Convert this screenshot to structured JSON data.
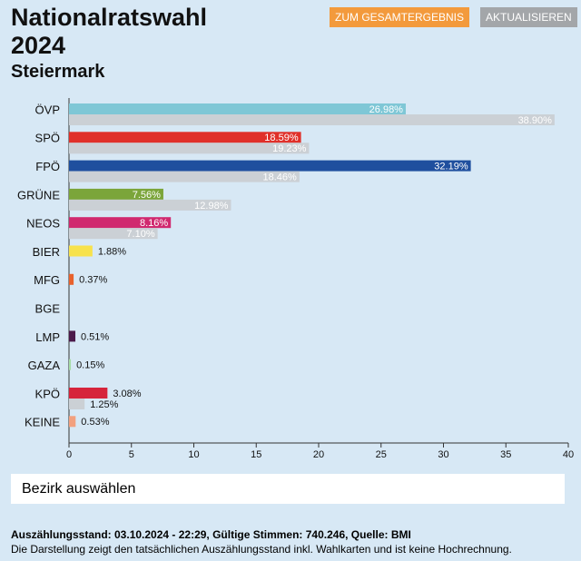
{
  "header": {
    "title": "Nationalratswahl 2024",
    "subtitle": "Steiermark",
    "buttons": [
      "ZUM GESAMTERGEBNIS",
      "AKTUALISIEREN"
    ]
  },
  "chart_data": {
    "type": "bar",
    "orientation": "horizontal",
    "categories": [
      "ÖVP",
      "SPÖ",
      "FPÖ",
      "GRÜNE",
      "NEOS",
      "BIER",
      "MFG",
      "BGE",
      "LMP",
      "GAZA",
      "KPÖ",
      "KEINE"
    ],
    "series": [
      {
        "colors": [
          "#7fc7d6",
          "#e0302a",
          "#1f4f9e",
          "#7ba53a",
          "#d0296f",
          "#f7e24c",
          "#e8612c",
          null,
          "#4b1a4b",
          "#a6dca6",
          "#d6243b",
          "#f2a07f"
        ],
        "values": [
          26.98,
          18.59,
          32.19,
          7.56,
          8.16,
          1.88,
          0.37,
          null,
          0.51,
          0.15,
          3.08,
          0.53
        ],
        "value_labels": [
          "26.98%",
          "18.59%",
          "32.19%",
          "7.56%",
          "8.16%",
          "1.88%",
          "0.37%",
          null,
          "0.51%",
          "0.15%",
          "3.08%",
          "0.53%"
        ]
      },
      {
        "color": "#cbd0d5",
        "values": [
          38.9,
          19.23,
          18.46,
          12.98,
          7.1,
          null,
          null,
          null,
          null,
          null,
          1.25,
          null
        ],
        "value_labels": [
          "38.90%",
          "19.23%",
          "18.46%",
          "12.98%",
          "7.10%",
          null,
          null,
          null,
          null,
          null,
          "1.25%",
          null
        ]
      }
    ],
    "xlim": [
      0,
      40
    ],
    "xticks": [
      0,
      5,
      10,
      15,
      20,
      25,
      30,
      35,
      40
    ],
    "grid": false
  },
  "footer": {
    "select": "Bezirk auswählen",
    "status": "Auszählungsstand: 03.10.2024 - 22:29, Gültige Stimmen: 740.246, Quelle: BMI",
    "note": "Die Darstellung zeigt den tatsächlichen Auszählungsstand inkl. Wahlkarten und ist keine Hochrechnung."
  }
}
